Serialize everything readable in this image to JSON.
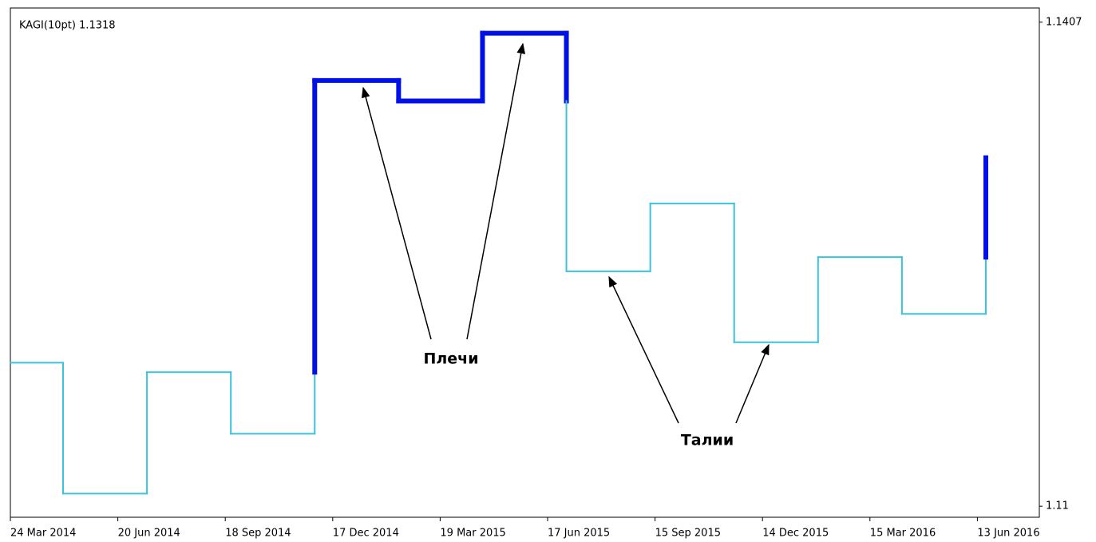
{
  "chart_data": {
    "type": "kagi",
    "title": "KAGI(10pt) 1.1318",
    "values": [
      1.1191,
      1.1108,
      1.1185,
      1.1146,
      1.137,
      1.1357,
      1.14,
      1.1249,
      1.1292,
      1.1204,
      1.1258,
      1.1222,
      1.1321
    ],
    "color": "#3cc3dc",
    "thick_color": "#0010e6",
    "ylim": [
      1.1093,
      1.1416
    ],
    "yticks": [
      1.1407,
      1.11
    ],
    "x_labels": [
      "24 Mar 2014",
      "20 Jun 2014",
      "18 Sep 2014",
      "17 Dec 2014",
      "19 Mar 2015",
      "17 Jun 2015",
      "15 Sep 2015",
      "14 Dec 2015",
      "15 Mar 2016",
      "13 Jun 2016"
    ],
    "annotations": [
      "Плечи",
      "Талии"
    ]
  }
}
